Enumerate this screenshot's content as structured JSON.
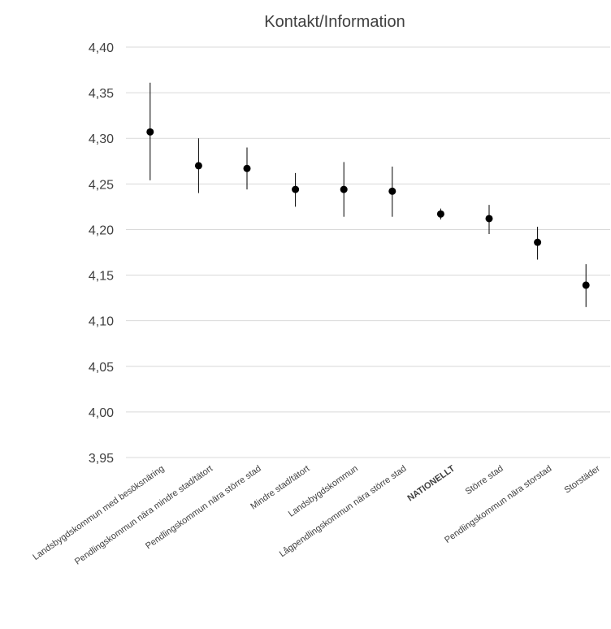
{
  "chart_data": {
    "type": "scatter",
    "title": "Kontakt/Information",
    "xlabel": "",
    "ylabel": "",
    "ylim": [
      3.95,
      4.4
    ],
    "ytick_values": [
      3.95,
      4.0,
      4.05,
      4.1,
      4.15,
      4.2,
      4.25,
      4.3,
      4.35,
      4.4
    ],
    "ytick_labels": [
      "3,95",
      "4,00",
      "4,05",
      "4,10",
      "4,15",
      "4,20",
      "4,25",
      "4,30",
      "4,35",
      "4,40"
    ],
    "grid": true,
    "legend": "none",
    "categories": [
      "Landsbygdskommun med besöksnäring",
      "Pendlingskommun nära mindre stad/tätort",
      "Pendlingskommun nära större stad",
      "Mindre stad/tätort",
      "Landsbygdskommun",
      "Lågpendlingskommun nära större stad",
      "NATIONELLT",
      "Större stad",
      "Pendlingskommun nära storstad",
      "Storstäder"
    ],
    "bold_categories": [
      "NATIONELLT"
    ],
    "values": [
      4.307,
      4.27,
      4.267,
      4.244,
      4.244,
      4.242,
      4.217,
      4.212,
      4.186,
      4.139
    ],
    "lower": [
      4.254,
      4.24,
      4.244,
      4.225,
      4.214,
      4.214,
      4.211,
      4.195,
      4.167,
      4.115
    ],
    "upper": [
      4.361,
      4.3,
      4.29,
      4.262,
      4.274,
      4.269,
      4.223,
      4.227,
      4.203,
      4.162
    ],
    "colors": {
      "marker": "#000000",
      "grid": "#d9d9d9",
      "text": "#404040"
    }
  }
}
